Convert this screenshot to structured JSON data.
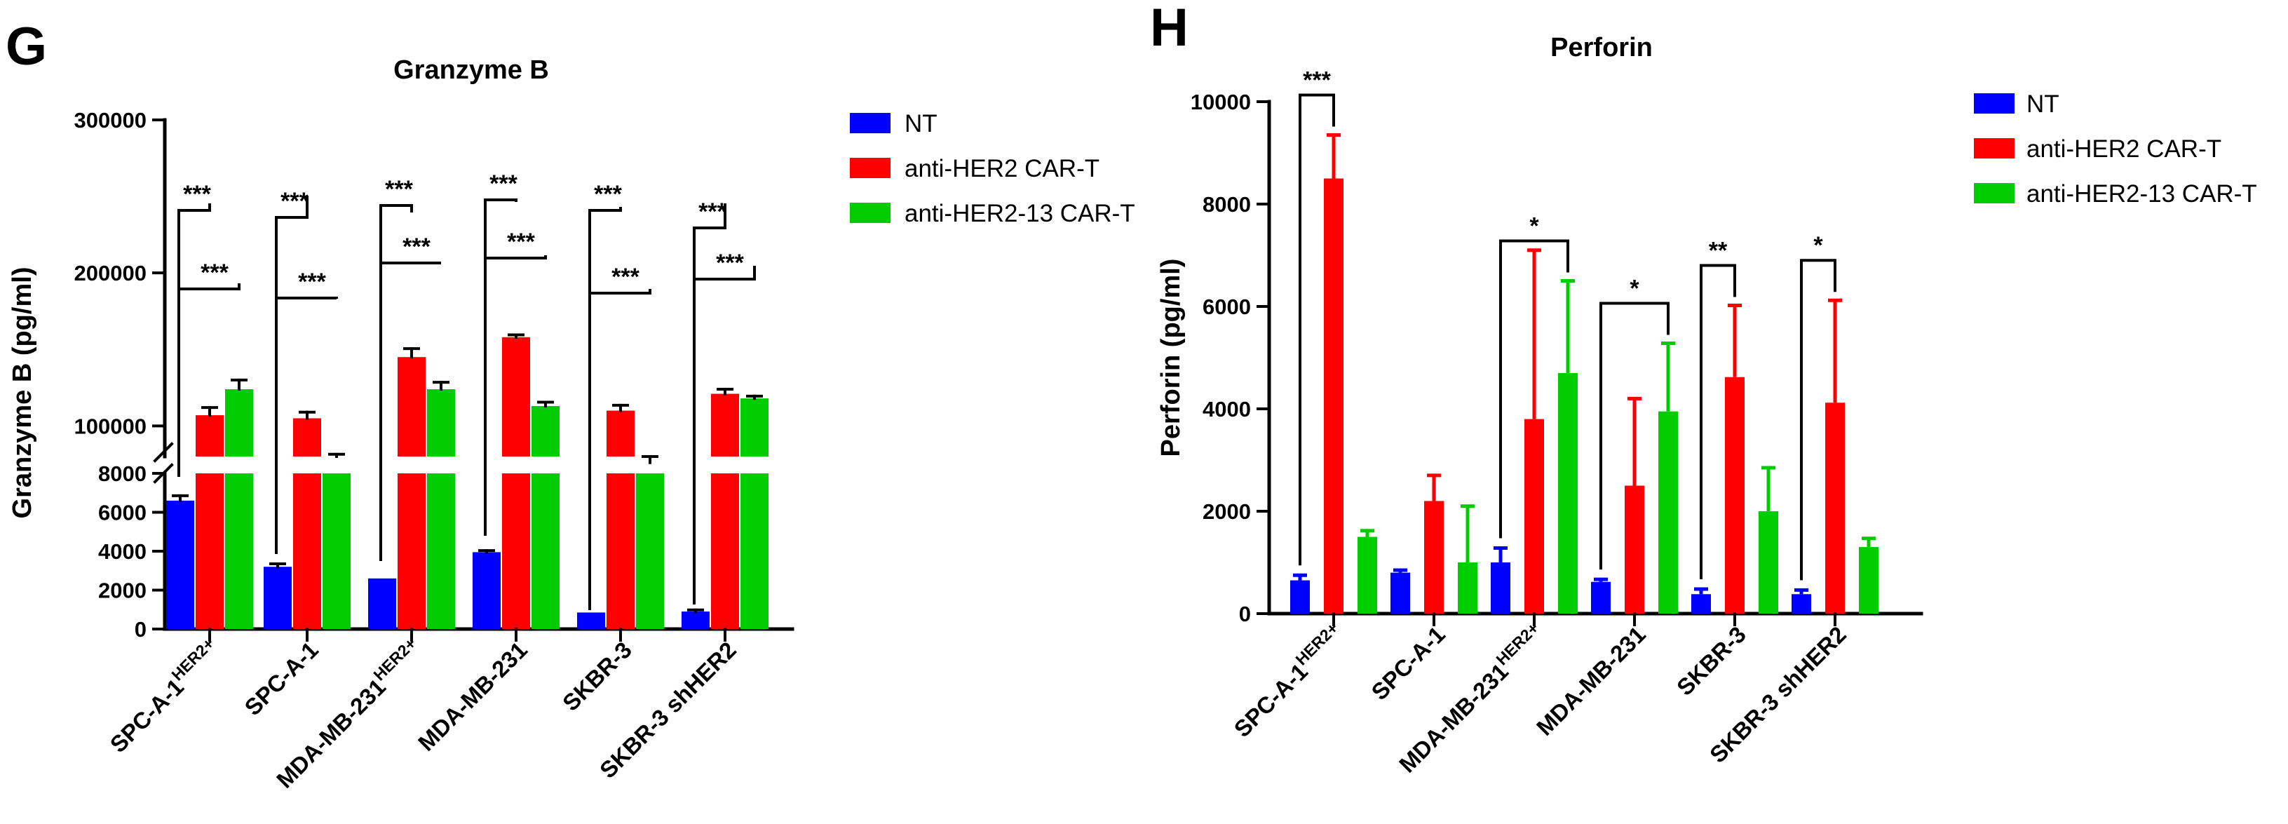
{
  "colors": {
    "NT": "#0000ff",
    "anti-HER2 CAR-T": "#ff0000",
    "anti-HER2-13 CAR-T": "#00cc00"
  },
  "legend": [
    "NT",
    "anti-HER2 CAR-T",
    "anti-HER2-13 CAR-T"
  ],
  "chart_data": [
    {
      "panel": "G",
      "type": "bar",
      "title": "Granzyme B",
      "ylabel": "Granzyme B (pg/ml)",
      "xlabel": "",
      "categories": [
        {
          "main": "SPC-A-1",
          "sup": "HER2+"
        },
        {
          "main": "SPC-A-1",
          "sup": ""
        },
        {
          "main": "MDA-MB-231",
          "sup": "HER2+"
        },
        {
          "main": "MDA-MB-231",
          "sup": ""
        },
        {
          "main": "SKBR-3",
          "sup": ""
        },
        {
          "main": "SKBR-3 shHER2",
          "sup": ""
        }
      ],
      "y_axis_break": {
        "lower_range": [
          0,
          8000
        ],
        "upper_range": [
          80000,
          300000
        ]
      },
      "lower_ticks": [
        "0",
        "2000",
        "4000",
        "6000",
        "8000"
      ],
      "upper_ticks": [
        "100000",
        "200000",
        "300000"
      ],
      "series": [
        {
          "name": "NT",
          "values": [
            6600,
            3200,
            2600,
            3950,
            850,
            900
          ],
          "errors": [
            250,
            150,
            0,
            80,
            0,
            80
          ]
        },
        {
          "name": "anti-HER2 CAR-T",
          "values": [
            107000,
            105000,
            145000,
            158000,
            110000,
            121000
          ],
          "errors": [
            5000,
            4000,
            5500,
            1500,
            3500,
            3000
          ]
        },
        {
          "name": "anti-HER2-13 CAR-T",
          "values": [
            124000,
            80000,
            124000,
            113000,
            76000,
            118000
          ],
          "errors": [
            6000,
            1500,
            4500,
            2500,
            4000,
            1500
          ]
        }
      ],
      "significance": [
        {
          "group": 0,
          "pair": "NT vs anti-HER2 CAR-T",
          "label": "***"
        },
        {
          "group": 0,
          "pair": "NT vs anti-HER2-13 CAR-T",
          "label": "***"
        },
        {
          "group": 1,
          "pair": "NT vs anti-HER2 CAR-T",
          "label": "***"
        },
        {
          "group": 1,
          "pair": "NT vs anti-HER2-13 CAR-T",
          "label": "***"
        },
        {
          "group": 2,
          "pair": "NT vs anti-HER2 CAR-T",
          "label": "***"
        },
        {
          "group": 2,
          "pair": "NT vs anti-HER2-13 CAR-T",
          "label": "***"
        },
        {
          "group": 3,
          "pair": "NT vs anti-HER2 CAR-T",
          "label": "***"
        },
        {
          "group": 3,
          "pair": "NT vs anti-HER2-13 CAR-T",
          "label": "***"
        },
        {
          "group": 4,
          "pair": "NT vs anti-HER2 CAR-T",
          "label": "***"
        },
        {
          "group": 4,
          "pair": "NT vs anti-HER2-13 CAR-T",
          "label": "***"
        },
        {
          "group": 5,
          "pair": "NT vs anti-HER2 CAR-T",
          "label": "***"
        },
        {
          "group": 5,
          "pair": "NT vs anti-HER2-13 CAR-T",
          "label": "***"
        }
      ]
    },
    {
      "panel": "H",
      "type": "bar",
      "title": "Perforin",
      "ylabel": "Perforin (pg/ml)",
      "xlabel": "",
      "categories": [
        {
          "main": "SPC-A-1",
          "sup": "HER2+"
        },
        {
          "main": "SPC-A-1",
          "sup": ""
        },
        {
          "main": "MDA-MB-231",
          "sup": "HER2+"
        },
        {
          "main": "MDA-MB-231",
          "sup": ""
        },
        {
          "main": "SKBR-3",
          "sup": ""
        },
        {
          "main": "SKBR-3 shHER2",
          "sup": ""
        }
      ],
      "ylim": [
        0,
        10000
      ],
      "ticks": [
        "0",
        "2000",
        "4000",
        "6000",
        "8000",
        "10000"
      ],
      "series": [
        {
          "name": "NT",
          "values": [
            650,
            800,
            1000,
            620,
            380,
            380
          ],
          "errors": [
            100,
            50,
            280,
            50,
            100,
            80
          ]
        },
        {
          "name": "anti-HER2 CAR-T",
          "values": [
            8500,
            2200,
            3800,
            2500,
            4620,
            4120
          ],
          "errors": [
            850,
            500,
            3300,
            1700,
            1400,
            2000
          ]
        },
        {
          "name": "anti-HER2-13 CAR-T",
          "values": [
            1500,
            1000,
            4700,
            3950,
            2000,
            1300
          ],
          "errors": [
            120,
            1100,
            1800,
            1330,
            850,
            170
          ]
        }
      ],
      "significance": [
        {
          "group": 0,
          "pair": "NT vs anti-HER2 CAR-T",
          "label": "***"
        },
        {
          "group": 2,
          "pair": "NT vs anti-HER2-13 CAR-T",
          "label": "*"
        },
        {
          "group": 3,
          "pair": "NT vs anti-HER2-13 CAR-T",
          "label": "*"
        },
        {
          "group": 4,
          "pair": "NT vs anti-HER2 CAR-T",
          "label": "**"
        },
        {
          "group": 5,
          "pair": "NT vs anti-HER2 CAR-T",
          "label": "*"
        }
      ]
    }
  ]
}
